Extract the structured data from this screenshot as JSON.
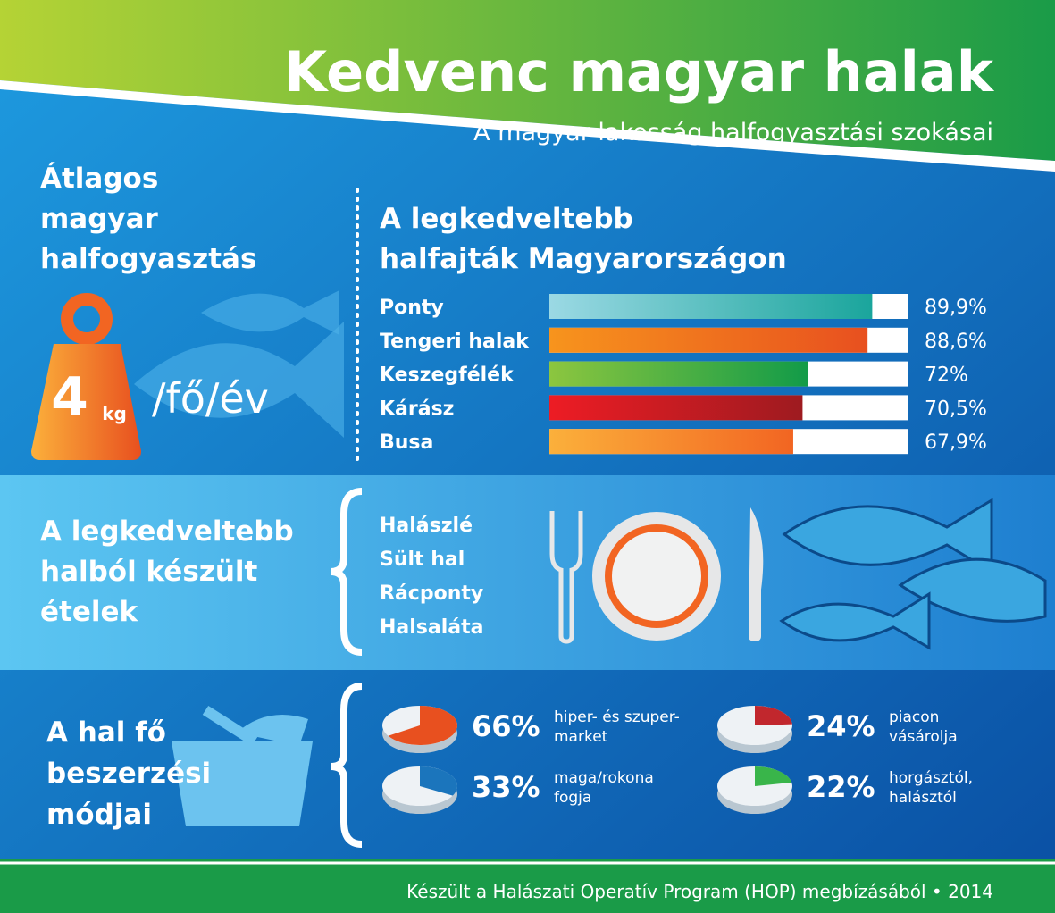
{
  "header": {
    "title": "Kedvenc magyar halak",
    "subtitle": "A magyar lakosság halfogyasztási szokásai"
  },
  "consumption": {
    "title_lines": [
      "Átlagos",
      "magyar",
      "halfogyasztás"
    ],
    "amount": "4",
    "unit": "kg",
    "per": "/fő/év"
  },
  "chart_data": {
    "type": "bar",
    "orientation": "horizontal",
    "title_lines": [
      "A legkedveltebb",
      "halfajták Magyarországon"
    ],
    "categories": [
      "Ponty",
      "Tengeri halak",
      "Keszegfélék",
      "Kárász",
      "Busa"
    ],
    "values": [
      89.9,
      88.6,
      72,
      70.5,
      67.9
    ],
    "value_labels": [
      "89,9%",
      "88,6%",
      "72%",
      "70,5%",
      "67,9%"
    ],
    "colors": [
      [
        "#9bd9e4",
        "#1aa59c"
      ],
      [
        "#f7941d",
        "#e8501f"
      ],
      [
        "#8cc63f",
        "#129b48"
      ],
      [
        "#ed1c24",
        "#9e1b20"
      ],
      [
        "#fbb03b",
        "#f26522"
      ]
    ],
    "xlim": [
      0,
      100
    ]
  },
  "dishes": {
    "title_lines": [
      "A legkedveltebb",
      "halból készült",
      "ételek"
    ],
    "items": [
      "Halászlé",
      "Sült hal",
      "Rácponty",
      "Halsaláta"
    ]
  },
  "purchase": {
    "title_lines": [
      "A hal fő",
      "beszerzési",
      "módjai"
    ],
    "items": [
      {
        "value": 66,
        "value_label": "66%",
        "lines": [
          "hiper- és szuper-",
          "market"
        ],
        "color": "#e8501f"
      },
      {
        "value": 24,
        "value_label": "24%",
        "lines": [
          "piacon",
          "vásárolja"
        ],
        "color": "#c1272d"
      },
      {
        "value": 33,
        "value_label": "33%",
        "lines": [
          "maga/rokona",
          "fogja"
        ],
        "color": "#1b75bc"
      },
      {
        "value": 22,
        "value_label": "22%",
        "lines": [
          "horgásztól,",
          "halásztól"
        ],
        "color": "#39b54a"
      }
    ]
  },
  "footer": "Készült a Halászati Operatív Program (HOP) megbízásából • 2014"
}
